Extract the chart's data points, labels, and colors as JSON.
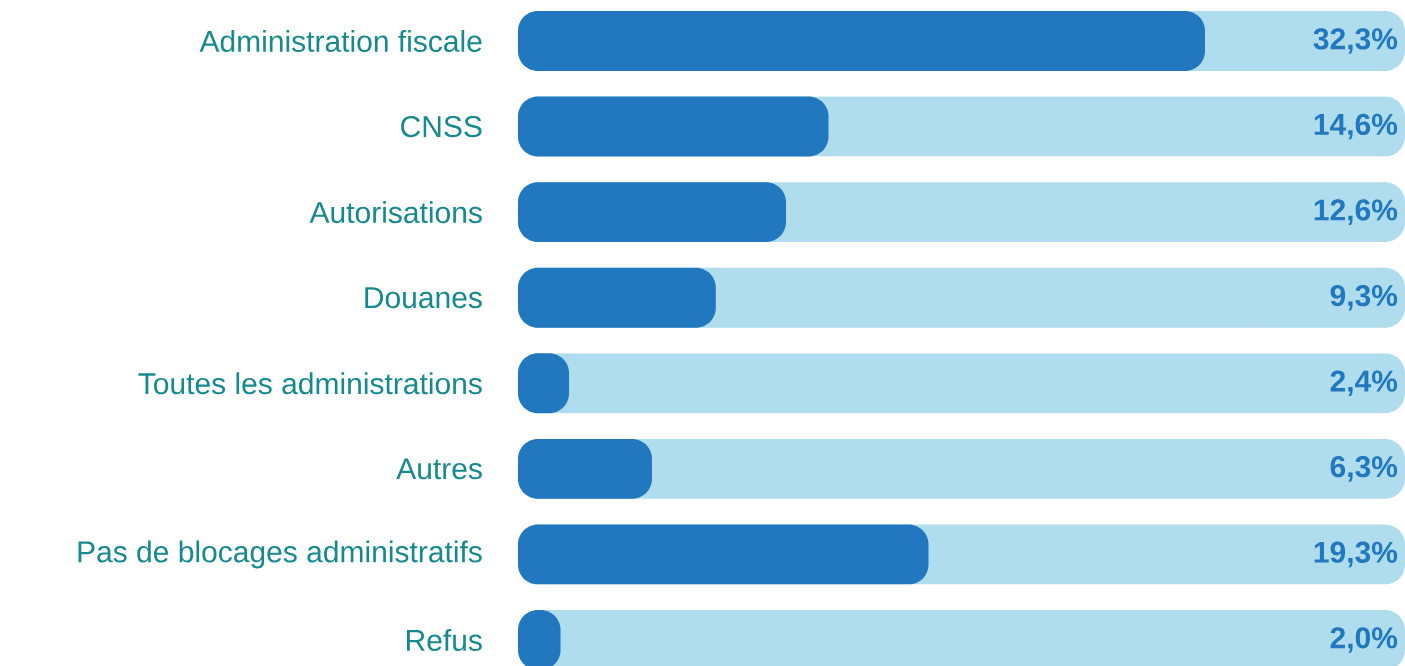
{
  "chart_data": {
    "type": "bar",
    "orientation": "horizontal",
    "categories": [
      "Administration fiscale",
      "CNSS",
      "Autorisations",
      "Douanes",
      "Toutes les administrations",
      "Autres",
      "Pas de blocages administratifs",
      "Refus"
    ],
    "values": [
      32.3,
      14.6,
      12.6,
      9.3,
      2.4,
      6.3,
      19.3,
      2.0
    ],
    "value_labels": [
      "32,3%",
      "14,6%",
      "12,6%",
      "9,3%",
      "2,4%",
      "6,3%",
      "19,3%",
      "2,0%"
    ],
    "color": "#2178be",
    "bands": [
      {
        "axis": "y",
        "from": "Administration fiscale",
        "to": "Administration fiscale",
        "color": "#b0dded"
      },
      {
        "axis": "y",
        "from": "CNSS",
        "to": "CNSS",
        "color": "#b0dded"
      },
      {
        "axis": "y",
        "from": "Autorisations",
        "to": "Autorisations",
        "color": "#b0dded"
      },
      {
        "axis": "y",
        "from": "Douanes",
        "to": "Douanes",
        "color": "#b0dded"
      },
      {
        "axis": "y",
        "from": "Toutes les administrations",
        "to": "Toutes les administrations",
        "color": "#b0dded"
      },
      {
        "axis": "y",
        "from": "Autres",
        "to": "Autres",
        "color": "#b0dded"
      },
      {
        "axis": "y",
        "from": "Pas de blocages administratifs",
        "to": "Pas de blocages administratifs",
        "color": "#b0dded"
      },
      {
        "axis": "y",
        "from": "Refus",
        "to": "Refus",
        "color": "#b0dded"
      }
    ],
    "tick_labels": "y",
    "grid": false
  }
}
